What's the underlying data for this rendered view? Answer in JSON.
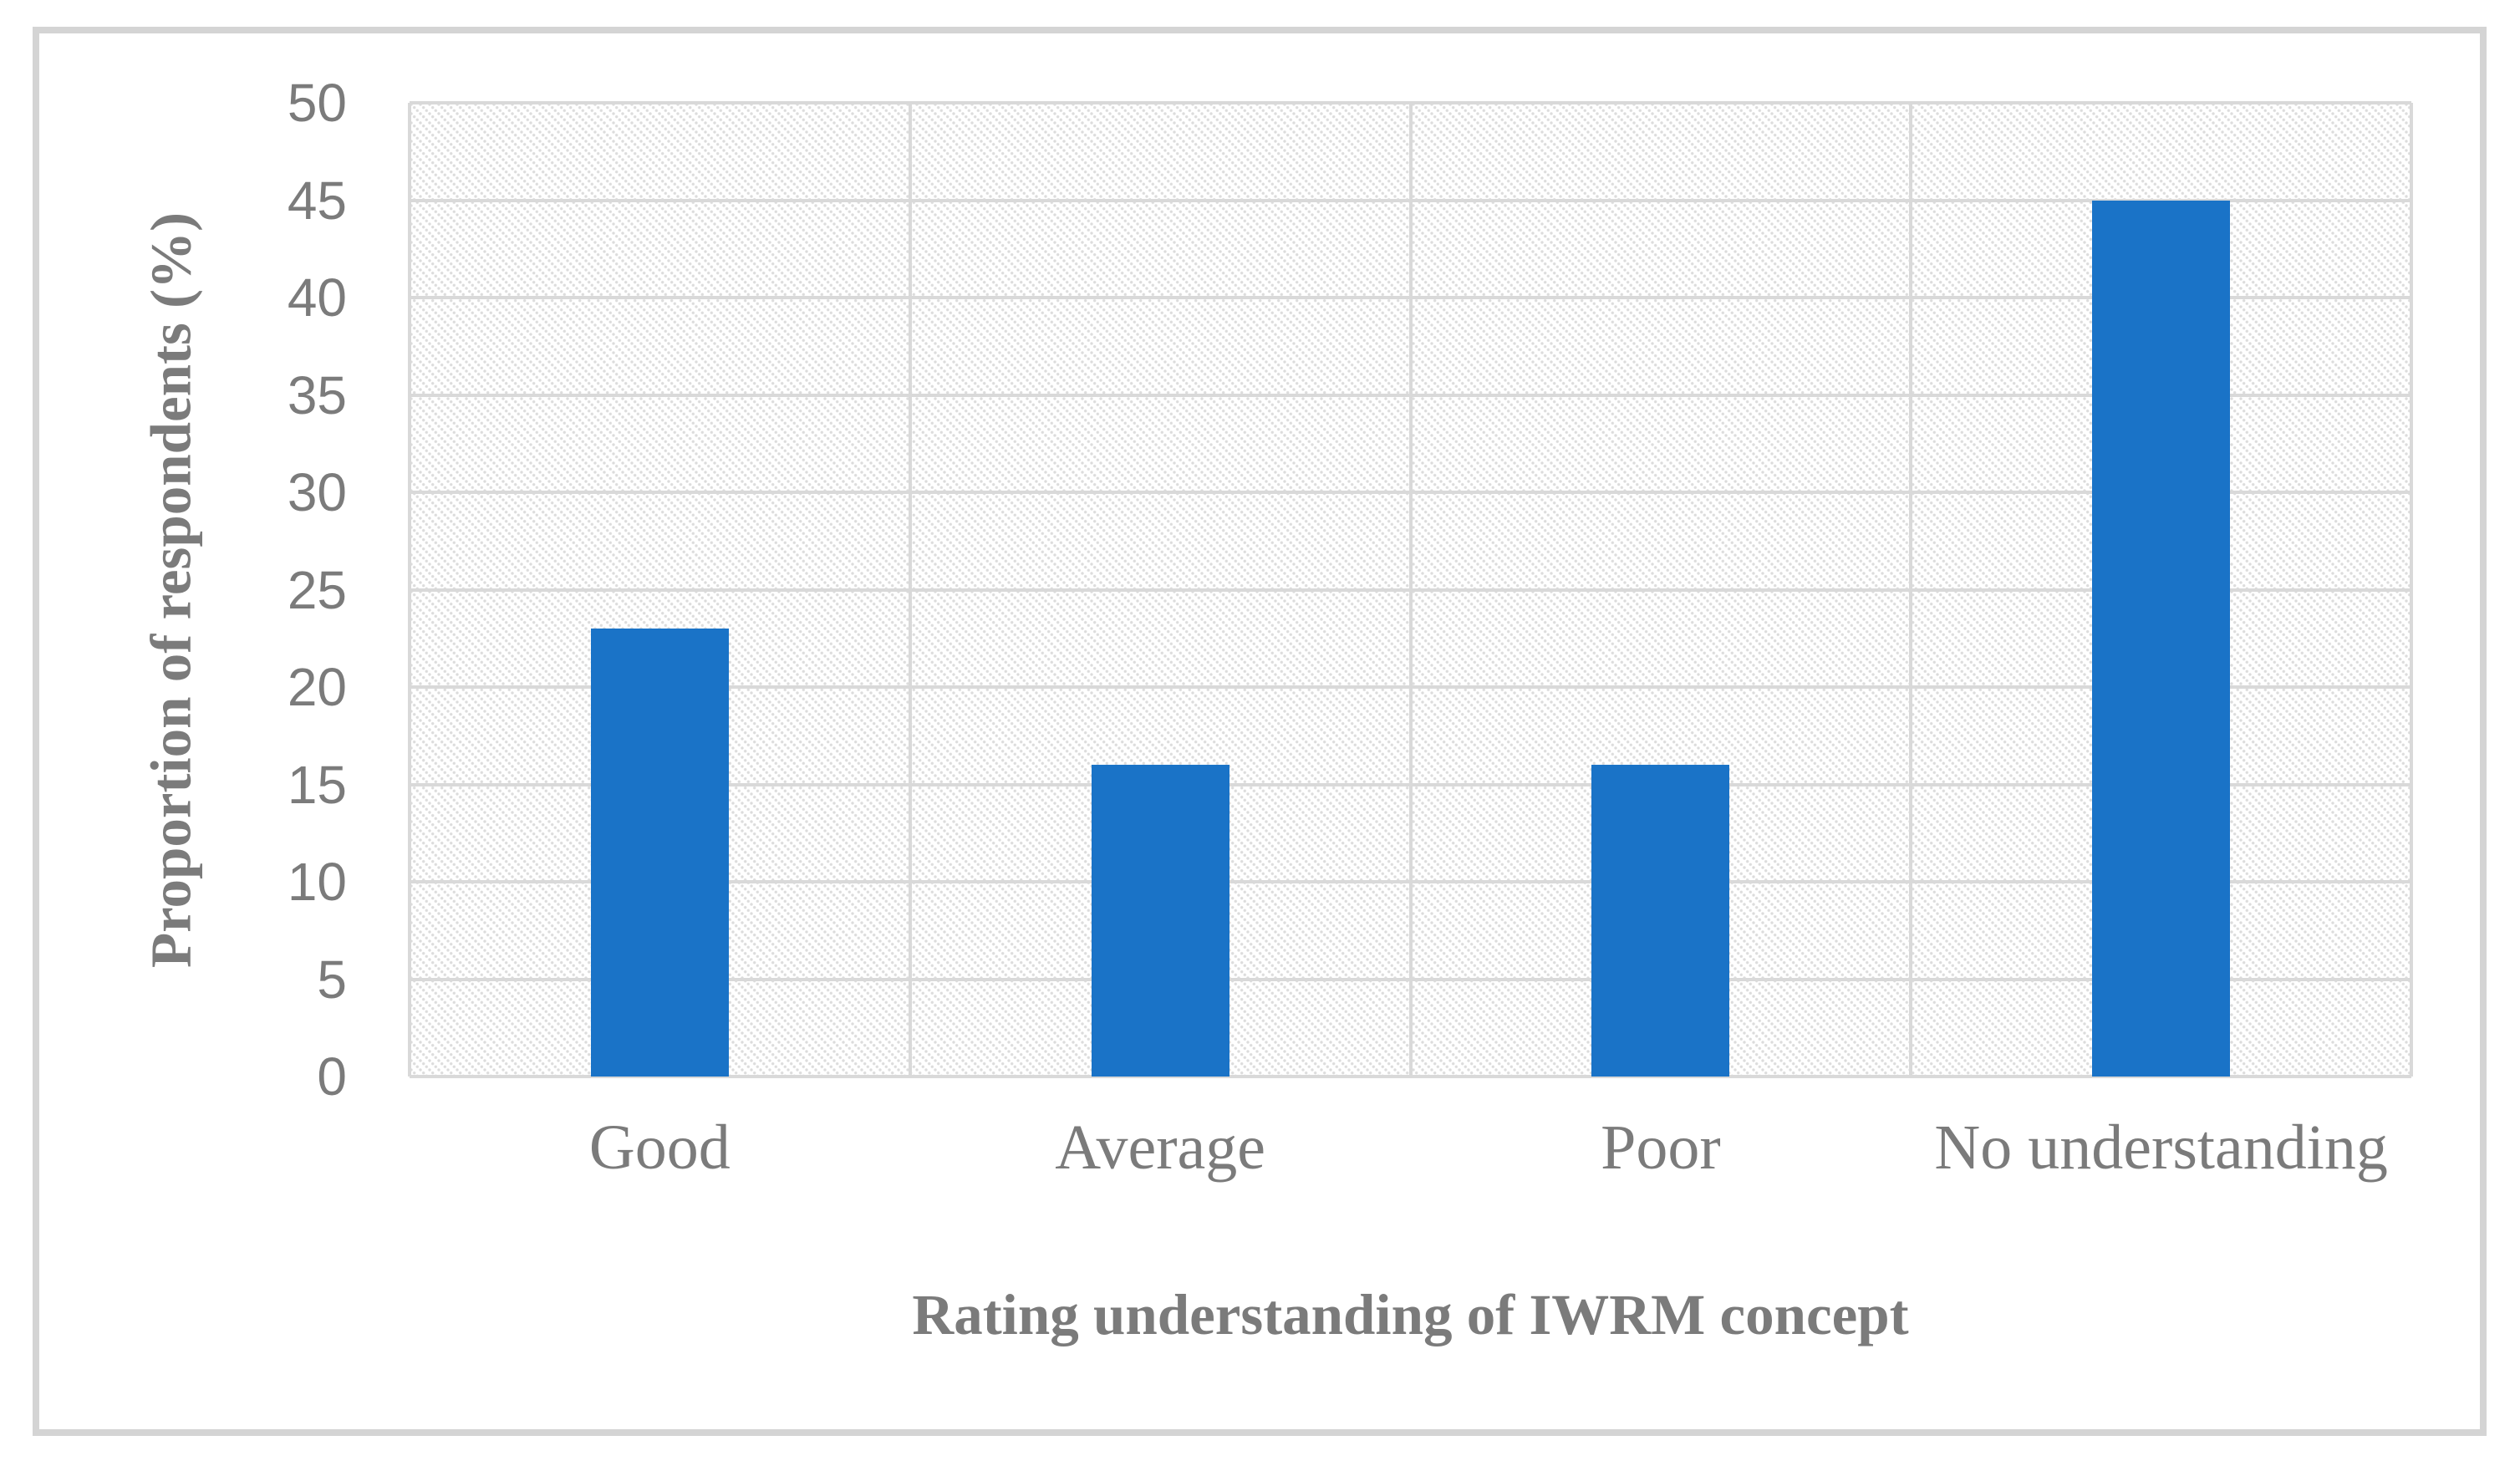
{
  "figure": {
    "background_color": "#FFFFFF",
    "frame_border_color": "#D4D4D4"
  },
  "chart_data": {
    "type": "bar",
    "title": "",
    "categories": [
      "Good",
      "Average",
      "Poor",
      "No understanding"
    ],
    "values": [
      23,
      16,
      16,
      45
    ],
    "xlabel": "Rating understanding of IWRM concept",
    "ylabel": "Proportion of respondents (%)",
    "ylim": [
      0,
      50
    ],
    "yticks": [
      0,
      5,
      10,
      15,
      20,
      25,
      30,
      35,
      40,
      45,
      50
    ],
    "legend": "none",
    "grid": "horizontal and vertical gridlines on",
    "plot_background": "light diagonal hatch pattern",
    "bar_color": "#1A73C7",
    "gridline_color": "#D9D9D9",
    "text_color": "#7B7B7B"
  }
}
